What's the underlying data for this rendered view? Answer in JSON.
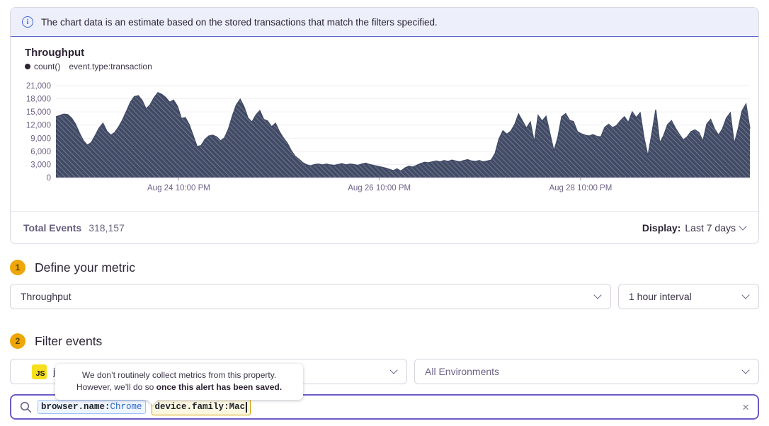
{
  "banner": {
    "text": "The chart data is an estimate based on the stored transactions that match the filters specified."
  },
  "chart": {
    "title": "Throughput",
    "legend": {
      "series_label": "count()",
      "query_label": "event.type:transaction"
    },
    "footer": {
      "total_label": "Total Events",
      "total_value": "318,157",
      "display_label": "Display:",
      "display_value": "Last 7 days"
    }
  },
  "chart_data": {
    "type": "area",
    "title": "Throughput",
    "series_name": "count() event.type:transaction",
    "xlabel": "",
    "ylabel": "",
    "ylim": [
      0,
      21000
    ],
    "y_ticks": [
      0,
      3000,
      6000,
      9000,
      12000,
      15000,
      18000,
      21000
    ],
    "x_ticks": [
      {
        "label": "Aug 24 10:00 PM",
        "pos": 0.177
      },
      {
        "label": "Aug 26 10:00 PM",
        "pos": 0.466
      },
      {
        "label": "Aug 28 10:00 PM",
        "pos": 0.756
      }
    ],
    "grid": "horizontal",
    "legend_position": "top-left",
    "values": [
      13900,
      14200,
      14500,
      14400,
      13600,
      12200,
      10200,
      8400,
      7400,
      8000,
      9600,
      11300,
      12400,
      10600,
      9700,
      10300,
      11600,
      13200,
      15200,
      17200,
      18500,
      18700,
      17600,
      15700,
      16600,
      18200,
      19400,
      19000,
      18300,
      17200,
      17700,
      16300,
      13500,
      13700,
      12100,
      9600,
      7100,
      7300,
      8700,
      9500,
      9700,
      9300,
      8400,
      9100,
      11100,
      14100,
      16600,
      17900,
      16100,
      13600,
      12700,
      14300,
      15300,
      13300,
      12900,
      11600,
      12400,
      10500,
      9100,
      7900,
      6200,
      4900,
      4200,
      3400,
      2900,
      2700,
      3000,
      3100,
      2900,
      3100,
      2900,
      2800,
      3000,
      3200,
      2900,
      3100,
      3000,
      2800,
      3100,
      3300,
      3000,
      2800,
      2600,
      2400,
      2200,
      1900,
      1600,
      2000,
      1500,
      2200,
      2600,
      2400,
      2800,
      3200,
      3500,
      3400,
      3600,
      3800,
      3600,
      3900,
      3700,
      4000,
      3800,
      3600,
      3900,
      4100,
      3800,
      3700,
      3900,
      3600,
      3800,
      4000,
      5500,
      8800,
      10700,
      9900,
      10600,
      12100,
      14500,
      12900,
      11300,
      12700,
      8100,
      14200,
      12900,
      14000,
      10100,
      6100,
      9100,
      13900,
      14600,
      13100,
      12800,
      10500,
      10000,
      9700,
      9500,
      9800,
      9400,
      9300,
      11500,
      12200,
      11400,
      11900,
      13000,
      13900,
      12600,
      15000,
      13700,
      14800,
      9100,
      4900,
      10100,
      15500,
      7900,
      9600,
      12100,
      13000,
      11300,
      9900,
      8600,
      9300,
      10500,
      10900,
      10300,
      8300,
      12200,
      13300,
      11100,
      9700,
      11100,
      13600,
      14800,
      7700,
      11100,
      15200,
      16800,
      11200
    ]
  },
  "sections": {
    "metric": {
      "step": "1",
      "title": "Define your metric",
      "metric_select": "Throughput",
      "interval_select": "1 hour interval"
    },
    "filter": {
      "step": "2",
      "title": "Filter events",
      "project_badge": "JS",
      "project_label": "j",
      "environment_select": "All Environments"
    }
  },
  "tooltip": {
    "line1": "We don’t routinely collect metrics from this property.",
    "line2_prefix": "However, we’ll do so ",
    "line2_bold": "once this alert has been saved."
  },
  "search": {
    "tokens": [
      {
        "key": "browser.name:",
        "value": "Chrome",
        "type": "valid"
      },
      {
        "key": "device.family:",
        "value": "Mac",
        "type": "warning"
      }
    ],
    "clear_icon": "×"
  },
  "colors": {
    "accent_purple": "#6d5ac8",
    "banner_bg": "#edf0fb",
    "banner_border": "#5a63c8",
    "chart_fill": "#414b66",
    "chart_stripe": "rgba(255,255,255,0.38)",
    "axis_label": "#6f6287",
    "gridline": "#f0edf3",
    "baseline": "#a89bb7",
    "step_badge": "#eea608",
    "js_badge": "#f7df1e",
    "token_valid_border": "#9cc0f8",
    "token_warn_border": "#d5a302"
  }
}
